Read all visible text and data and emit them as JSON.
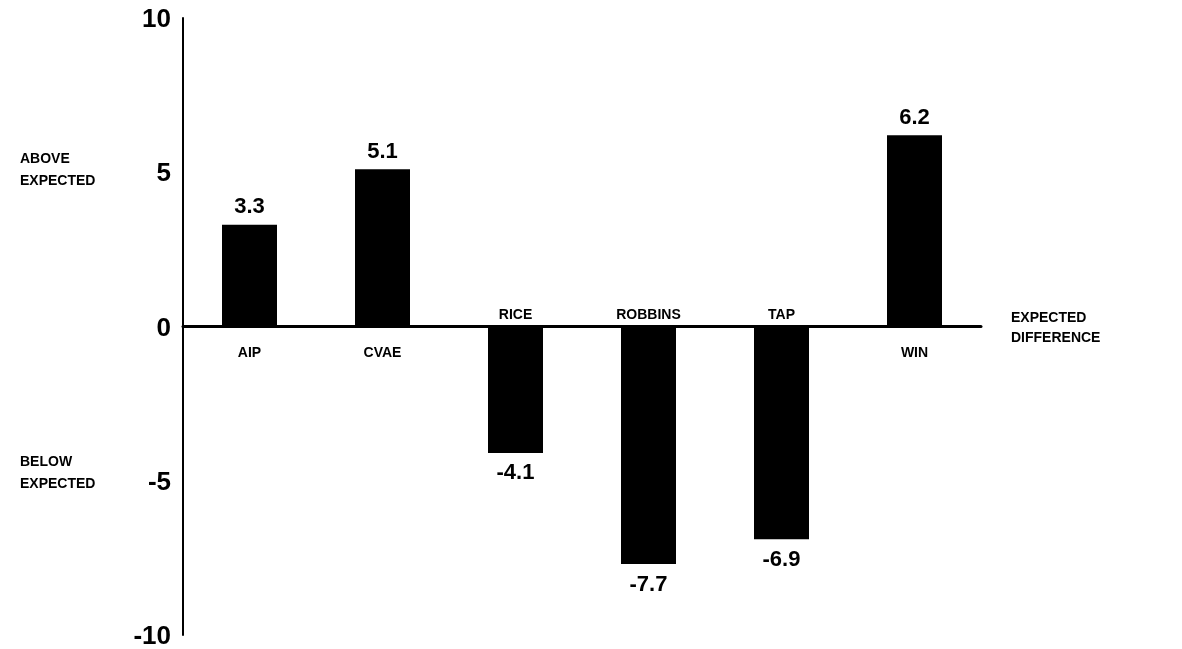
{
  "chart_data": {
    "type": "bar",
    "categories": [
      "AIP",
      "CVAE",
      "RICE",
      "ROBBINS",
      "TAP",
      "WIN"
    ],
    "values": [
      3.3,
      5.1,
      -4.1,
      -7.7,
      -6.9,
      6.2
    ],
    "color": "#000000",
    "ylim": [
      -10,
      10
    ],
    "yticks": [
      -10,
      -5,
      0,
      5,
      10
    ],
    "grid": false,
    "data_labels": true,
    "xlabel": "EXPECTED\nDIFFERENCE",
    "annotations": [
      "ABOVE\nEXPECTED",
      "BELOW\nEXPECTED"
    ]
  }
}
